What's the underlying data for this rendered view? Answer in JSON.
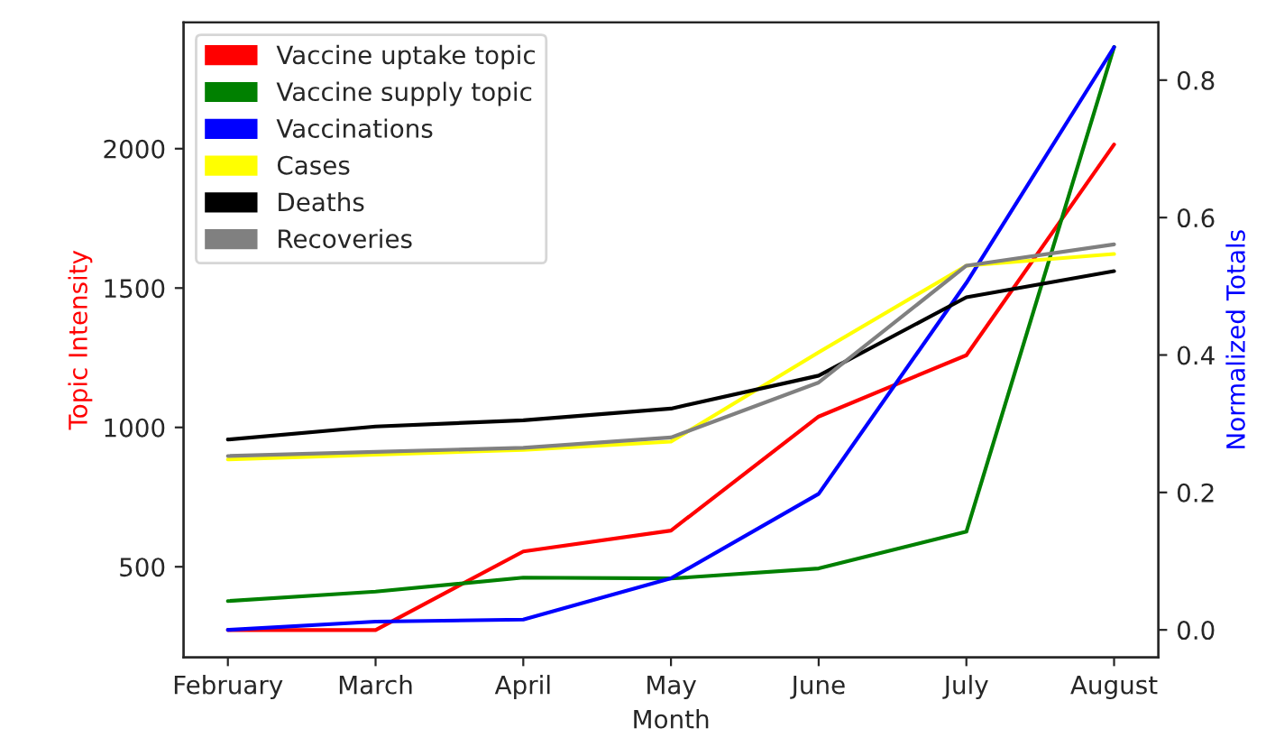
{
  "chart_data": {
    "type": "line",
    "xlabel": "Month",
    "ylabel": "Topic Intensity",
    "y2label": "Normalized Totals",
    "categories": [
      "February",
      "March",
      "April",
      "May",
      "June",
      "July",
      "August"
    ],
    "series": [
      {
        "name": "Vaccine uptake topic",
        "color": "#ff0000",
        "values": [
          273,
          273,
          555,
          630,
          1039,
          1259,
          2015
        ]
      },
      {
        "name": "Vaccine supply topic",
        "color": "#008000",
        "values": [
          377,
          411,
          461,
          458,
          494,
          626,
          2365
        ]
      },
      {
        "name": "Vaccinations",
        "color": "#0000ff",
        "axis": "y2",
        "values": [
          0.0,
          0.012,
          0.015,
          0.075,
          0.198,
          0.505,
          0.848
        ]
      },
      {
        "name": "Cases",
        "color": "#ffff00",
        "axis": "y2",
        "values": [
          0.248,
          0.255,
          0.262,
          0.274,
          0.404,
          0.53,
          0.547
        ]
      },
      {
        "name": "Deaths",
        "color": "#000000",
        "axis": "y2",
        "values": [
          0.277,
          0.296,
          0.305,
          0.322,
          0.37,
          0.484,
          0.522
        ]
      },
      {
        "name": "Recoveries",
        "color": "#808080",
        "axis": "y2",
        "values": [
          0.253,
          0.259,
          0.265,
          0.28,
          0.36,
          0.53,
          0.561
        ]
      }
    ],
    "ylim": [
      175,
      2453
    ],
    "yticks": [
      500,
      1000,
      1500,
      2000
    ],
    "y2lim": [
      -0.04,
      0.884
    ],
    "y2ticks": [
      {
        "value": 0,
        "label": "0.0"
      },
      0.2,
      0.4,
      0.6,
      0.8
    ],
    "legend": "top left",
    "grid": false
  }
}
